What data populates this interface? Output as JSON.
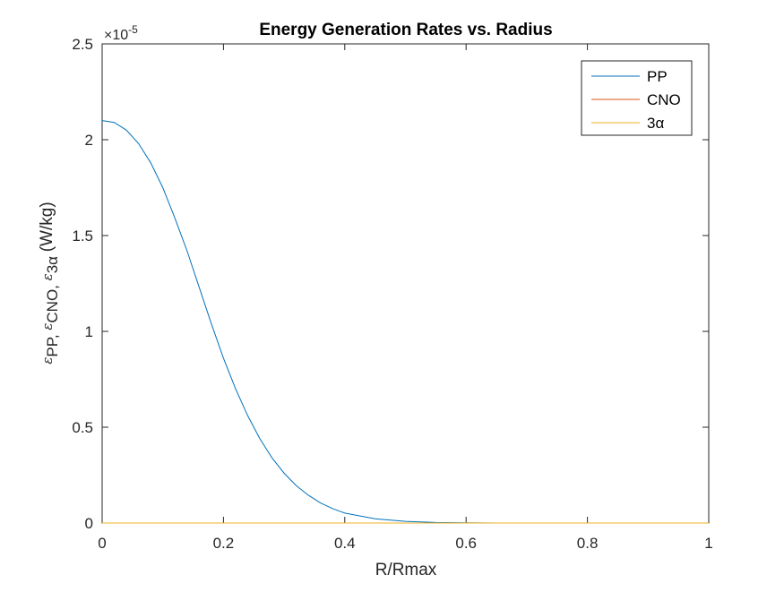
{
  "chart_data": {
    "type": "line",
    "title": "Energy Generation Rates vs. Radius",
    "xlabel": "R/Rmax",
    "ylabel": {
      "prefix": "(W/kg)",
      "subs": [
        "PP",
        "CNO",
        "3α"
      ],
      "symbol": "ε"
    },
    "exponent_label": {
      "base": "×10",
      "power": "-5"
    },
    "xlim": [
      0,
      1
    ],
    "ylim": [
      0,
      2.5e-05
    ],
    "x_ticks": [
      0,
      0.2,
      0.4,
      0.6,
      0.8,
      1
    ],
    "x_tick_labels": [
      "0",
      "0.2",
      "0.4",
      "0.6",
      "0.8",
      "1"
    ],
    "y_ticks": [
      0,
      5e-06,
      1e-05,
      1.5e-05,
      2e-05,
      2.5e-05
    ],
    "y_tick_labels": [
      "0",
      "0.5",
      "1",
      "1.5",
      "2",
      "2.5"
    ],
    "grid": false,
    "legend_position": "top-right",
    "series": [
      {
        "name": "PP",
        "color": "#0072BD",
        "x": [
          0,
          0.02,
          0.04,
          0.06,
          0.08,
          0.1,
          0.12,
          0.14,
          0.16,
          0.18,
          0.2,
          0.22,
          0.24,
          0.26,
          0.28,
          0.3,
          0.32,
          0.34,
          0.36,
          0.38,
          0.4,
          0.45,
          0.5,
          0.55,
          0.6,
          0.65,
          0.7,
          0.8,
          0.9,
          1.0
        ],
        "y": [
          2.1e-05,
          2.09e-05,
          2.05e-05,
          1.98e-05,
          1.88e-05,
          1.75e-05,
          1.59e-05,
          1.42e-05,
          1.23e-05,
          1.04e-05,
          8.6e-06,
          7e-06,
          5.6e-06,
          4.4e-06,
          3.4e-06,
          2.6e-06,
          1.95e-06,
          1.45e-06,
          1.05e-06,
          7.5e-07,
          5.2e-07,
          2.2e-07,
          9e-08,
          3e-08,
          1e-08,
          3e-09,
          1e-09,
          0,
          0,
          0
        ]
      },
      {
        "name": "CNO",
        "color": "#D95319",
        "x": [
          0,
          1
        ],
        "y": [
          0,
          0
        ]
      },
      {
        "name": "3α",
        "color": "#EDB120",
        "x": [
          0,
          1
        ],
        "y": [
          0,
          0
        ]
      }
    ]
  }
}
